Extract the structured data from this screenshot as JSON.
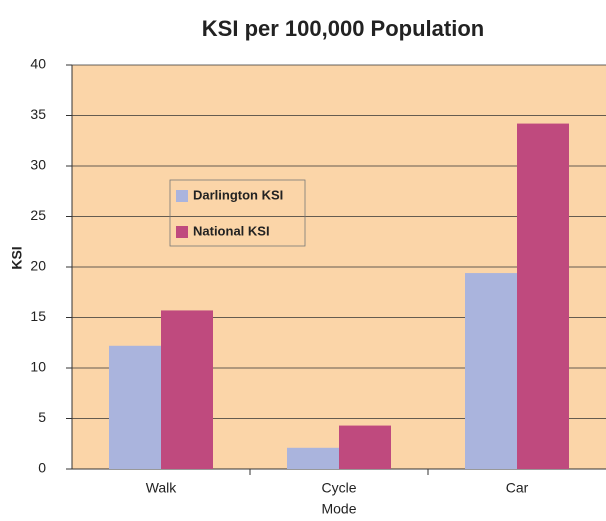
{
  "chart_data": {
    "type": "bar",
    "title": "KSI per 100,000 Population",
    "xlabel": "Mode",
    "ylabel": "KSI",
    "categories": [
      "Walk",
      "Cycle",
      "Car"
    ],
    "series": [
      {
        "name": "Darlington KSI",
        "color": "#aab4dd",
        "values": [
          12.2,
          2.1,
          19.4
        ]
      },
      {
        "name": "National KSI",
        "color": "#bf4a7e",
        "values": [
          15.7,
          4.3,
          34.2
        ]
      }
    ],
    "ylim": [
      0,
      40
    ],
    "yticks": [
      0,
      5,
      10,
      15,
      20,
      25,
      30,
      35,
      40
    ],
    "grid": true,
    "plot_background": "#fbd5a8"
  }
}
